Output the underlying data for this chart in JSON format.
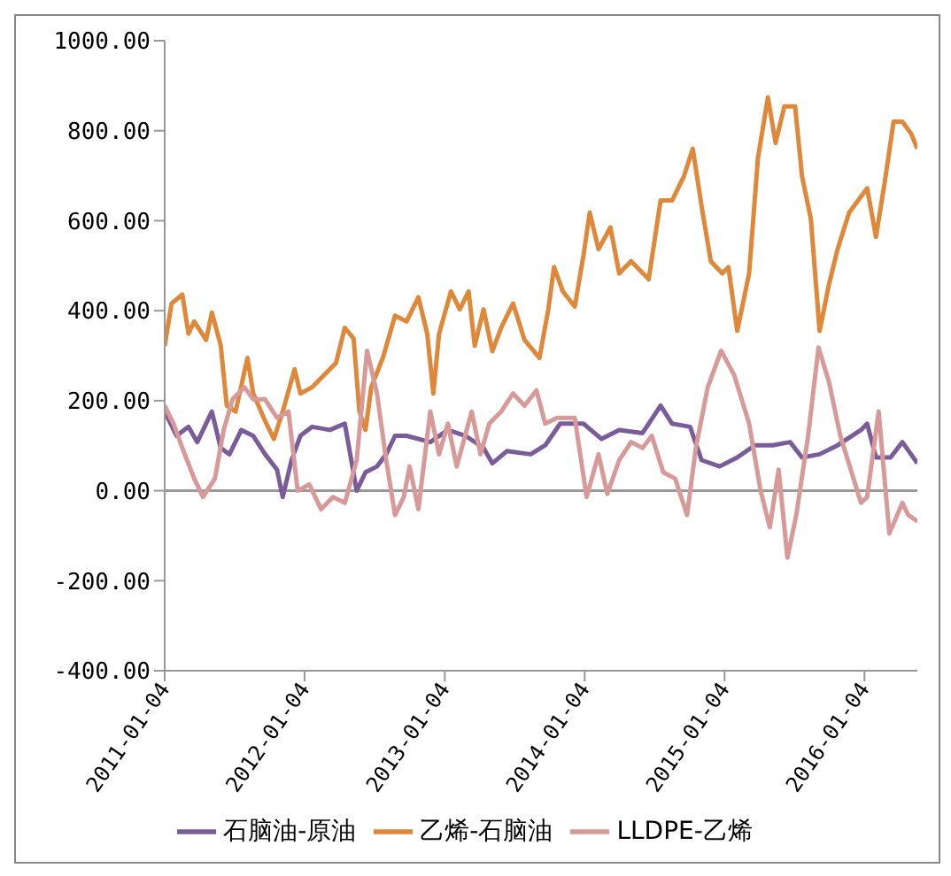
{
  "chart_data": {
    "type": "line",
    "xlim": [
      "2011-01-04",
      "2016-05-21"
    ],
    "xticks": [
      "2011-01-04",
      "2012-01-04",
      "2013-01-04",
      "2014-01-04",
      "2015-01-04",
      "2016-01-04"
    ],
    "ylim": [
      -400,
      1000
    ],
    "yticks": [
      {
        "value": -400,
        "label": "-400.00"
      },
      {
        "value": -200,
        "label": "-200.00"
      },
      {
        "value": 0,
        "label": "0.00"
      },
      {
        "value": 200,
        "label": "200.00"
      },
      {
        "value": 400,
        "label": "400.00"
      },
      {
        "value": 600,
        "label": "600.00"
      },
      {
        "value": 800,
        "label": "800.00"
      },
      {
        "value": 1000,
        "label": "1000.00"
      }
    ],
    "grid": false,
    "legend": "bottom",
    "marker": "none",
    "line_style": "solid",
    "ref_lines": [
      {
        "axis": "y",
        "value": 0,
        "color": "#999999"
      }
    ],
    "series": [
      {
        "name": "石脑油-原油",
        "color": "#7b5c9a",
        "x": [
          "2011-01-04",
          "2011-02-04",
          "2011-03-07",
          "2011-03-30",
          "2011-05-07",
          "2011-05-30",
          "2011-06-22",
          "2011-07-23",
          "2011-08-23",
          "2011-09-23",
          "2011-10-24",
          "2011-11-08",
          "2011-12-01",
          "2011-12-24",
          "2012-01-24",
          "2012-03-10",
          "2012-04-18",
          "2012-05-19",
          "2012-06-11",
          "2012-07-11",
          "2012-08-04",
          "2012-08-27",
          "2012-09-26",
          "2012-11-27",
          "2013-01-12",
          "2013-02-27",
          "2013-04-15",
          "2013-05-08",
          "2013-06-15",
          "2013-08-16",
          "2013-09-23",
          "2013-11-01",
          "2014-01-01",
          "2014-02-17",
          "2014-04-04",
          "2014-06-04",
          "2014-07-21",
          "2014-08-20",
          "2014-10-06",
          "2014-11-05",
          "2014-12-22",
          "2015-02-06",
          "2015-03-24",
          "2015-05-09",
          "2015-06-24",
          "2015-07-25",
          "2015-09-09",
          "2015-10-26",
          "2015-12-26",
          "2016-01-11",
          "2016-02-03",
          "2016-03-12",
          "2016-04-12",
          "2016-05-21"
        ],
        "values": [
          176,
          122,
          142,
          108,
          176,
          95,
          81,
          135,
          122,
          81,
          47,
          -14,
          68,
          122,
          142,
          135,
          149,
          0,
          41,
          54,
          81,
          122,
          122,
          108,
          135,
          122,
          95,
          61,
          88,
          81,
          101,
          149,
          149,
          115,
          135,
          128,
          189,
          149,
          142,
          68,
          54,
          74,
          101,
          101,
          108,
          74,
          81,
          101,
          135,
          149,
          74,
          74,
          108,
          61
        ]
      },
      {
        "name": "乙烯-石脑油",
        "color": "#e0883a",
        "x": [
          "2011-01-04",
          "2011-01-22",
          "2011-02-19",
          "2011-03-07",
          "2011-03-22",
          "2011-04-22",
          "2011-05-07",
          "2011-05-30",
          "2011-06-15",
          "2011-07-08",
          "2011-08-08",
          "2011-08-23",
          "2011-09-23",
          "2011-10-16",
          "2011-11-08",
          "2011-12-09",
          "2011-12-24",
          "2012-01-24",
          "2012-02-24",
          "2012-03-26",
          "2012-04-18",
          "2012-05-11",
          "2012-05-26",
          "2012-06-11",
          "2012-06-26",
          "2012-07-27",
          "2012-08-27",
          "2012-09-26",
          "2012-10-27",
          "2012-11-19",
          "2012-12-05",
          "2012-12-20",
          "2013-01-20",
          "2013-02-12",
          "2013-03-07",
          "2013-03-23",
          "2013-04-15",
          "2013-05-08",
          "2013-05-31",
          "2013-07-01",
          "2013-07-31",
          "2013-09-08",
          "2013-10-01",
          "2013-10-16",
          "2013-11-08",
          "2013-12-09",
          "2014-01-01",
          "2014-01-17",
          "2014-02-09",
          "2014-03-12",
          "2014-04-04",
          "2014-05-05",
          "2014-06-20",
          "2014-07-21",
          "2014-08-20",
          "2014-09-20",
          "2014-10-13",
          "2014-11-05",
          "2014-11-29",
          "2014-12-29",
          "2015-01-14",
          "2015-02-06",
          "2015-03-09",
          "2015-04-01",
          "2015-04-27",
          "2015-05-17",
          "2015-06-09",
          "2015-07-07",
          "2015-07-25",
          "2015-08-17",
          "2015-09-09",
          "2015-10-03",
          "2015-10-26",
          "2015-11-25",
          "2016-01-11",
          "2016-02-03",
          "2016-02-26",
          "2016-03-20",
          "2016-04-12",
          "2016-05-05",
          "2016-05-21"
        ],
        "values": [
          322,
          416,
          436,
          349,
          376,
          335,
          396,
          324,
          189,
          176,
          295,
          216,
          155,
          115,
          176,
          270,
          216,
          230,
          257,
          284,
          362,
          338,
          176,
          135,
          230,
          297,
          389,
          376,
          430,
          349,
          216,
          349,
          443,
          403,
          443,
          322,
          403,
          310,
          362,
          416,
          335,
          295,
          403,
          497,
          443,
          409,
          524,
          618,
          537,
          585,
          483,
          510,
          470,
          645,
          645,
          699,
          760,
          632,
          510,
          483,
          497,
          355,
          483,
          739,
          874,
          773,
          854,
          854,
          699,
          605,
          355,
          457,
          537,
          618,
          672,
          564,
          686,
          820,
          820,
          793,
          760
        ]
      },
      {
        "name": "LLDPE-乙烯",
        "color": "#d89a98",
        "x": [
          "2011-01-04",
          "2011-01-27",
          "2011-02-19",
          "2011-03-22",
          "2011-04-14",
          "2011-05-15",
          "2011-06-07",
          "2011-06-30",
          "2011-07-31",
          "2011-08-23",
          "2011-09-23",
          "2011-10-24",
          "2011-11-23",
          "2011-12-17",
          "2012-01-16",
          "2012-02-16",
          "2012-03-18",
          "2012-04-18",
          "2012-05-19",
          "2012-06-15",
          "2012-07-11",
          "2012-08-04",
          "2012-08-27",
          "2012-09-19",
          "2012-10-04",
          "2012-10-27",
          "2012-11-27",
          "2012-12-20",
          "2013-01-12",
          "2013-02-04",
          "2013-03-15",
          "2013-04-07",
          "2013-04-30",
          "2013-05-31",
          "2013-07-01",
          "2013-07-31",
          "2013-08-31",
          "2013-09-23",
          "2013-10-24",
          "2013-12-09",
          "2014-01-09",
          "2014-02-09",
          "2014-03-04",
          "2014-04-04",
          "2014-05-05",
          "2014-06-04",
          "2014-06-28",
          "2014-07-28",
          "2014-08-28",
          "2014-09-28",
          "2014-10-21",
          "2014-11-21",
          "2014-12-26",
          "2015-01-29",
          "2015-03-09",
          "2015-04-08",
          "2015-05-02",
          "2015-05-25",
          "2015-06-17",
          "2015-07-10",
          "2015-08-10",
          "2015-09-06",
          "2015-10-03",
          "2015-11-02",
          "2015-12-26",
          "2016-01-11",
          "2016-02-10",
          "2016-03-09",
          "2016-04-12",
          "2016-04-27",
          "2016-05-21"
        ],
        "values": [
          189,
          149,
          95,
          27,
          -14,
          27,
          135,
          203,
          230,
          203,
          203,
          162,
          176,
          0,
          14,
          -41,
          -14,
          -27,
          68,
          311,
          216,
          68,
          -54,
          -14,
          54,
          -41,
          176,
          81,
          149,
          54,
          176,
          81,
          149,
          176,
          216,
          189,
          223,
          149,
          162,
          162,
          -14,
          81,
          -7,
          68,
          108,
          95,
          122,
          41,
          27,
          -54,
          95,
          230,
          311,
          257,
          149,
          0,
          -81,
          47,
          -149,
          -54,
          122,
          318,
          243,
          122,
          -27,
          -14,
          176,
          -95,
          -27,
          -54,
          -68
        ]
      }
    ]
  }
}
